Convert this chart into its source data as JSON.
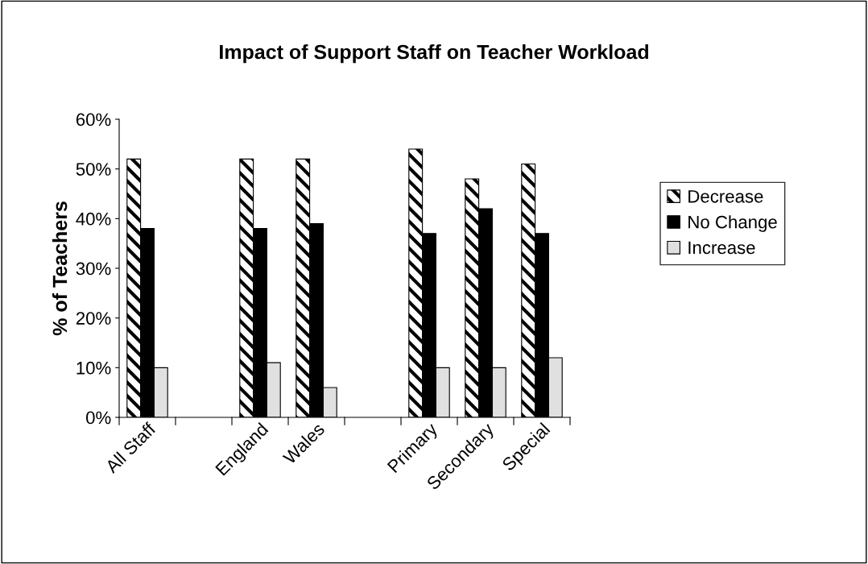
{
  "chart_data": {
    "type": "bar",
    "title": "Impact of Support Staff on Teacher Workload",
    "ylabel": "% of Teachers",
    "categories": [
      "All Staff",
      null,
      "England",
      "Wales",
      null,
      "Primary",
      "Secondary",
      "Special"
    ],
    "series": [
      {
        "name": "Decrease",
        "color": "#000000",
        "values": [
          52,
          null,
          52,
          52,
          null,
          54,
          48,
          51
        ]
      },
      {
        "name": "No Change",
        "color": "#000000",
        "values": [
          38,
          null,
          38,
          39,
          null,
          37,
          42,
          37
        ]
      },
      {
        "name": "Increase",
        "color": "#e0e0e0",
        "values": [
          10,
          null,
          11,
          6,
          null,
          10,
          10,
          12
        ]
      }
    ],
    "ylim": [
      0,
      60
    ],
    "yticks": [
      {
        "value": 0,
        "label": "0%"
      },
      {
        "value": 10,
        "label": "10%"
      },
      {
        "value": 20,
        "label": "20%"
      },
      {
        "value": 30,
        "label": "30%"
      },
      {
        "value": 40,
        "label": "40%"
      },
      {
        "value": 50,
        "label": "50%"
      },
      {
        "value": 60,
        "label": "60%"
      }
    ],
    "grid": false,
    "legend": "right"
  }
}
